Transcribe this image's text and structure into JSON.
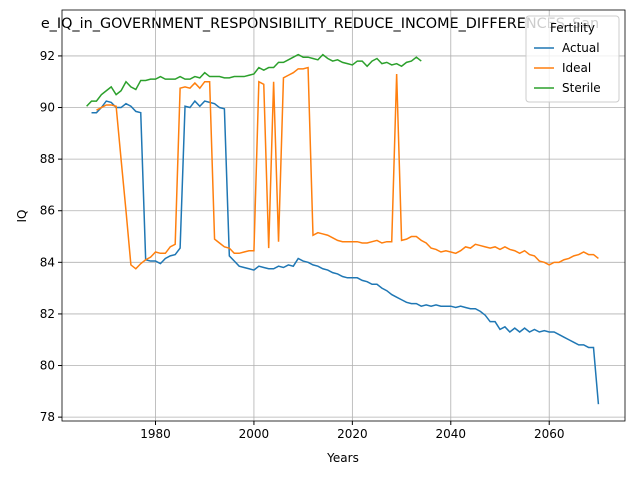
{
  "chart_data": {
    "type": "line",
    "title": "e_IQ_in_GOVERNMENT_RESPONSIBILITY_REDUCE_INCOME_DIFFERENCES_San",
    "x_label": "Years",
    "y_label": "IQ",
    "xlim": [
      1961,
      2075.4
    ],
    "ylim": [
      77.85,
      93.78
    ],
    "xticks": [
      1980,
      2000,
      2020,
      2040,
      2060
    ],
    "yticks": [
      78,
      80,
      82,
      84,
      86,
      88,
      90,
      92
    ],
    "grid": true,
    "legend_title": "Fertility",
    "legend_position": "upper right",
    "series": [
      {
        "name": "Actual",
        "color": "#1f77b4",
        "x": [
          1967,
          1968,
          1969,
          1970,
          1971,
          1972,
          1973,
          1974,
          1975,
          1976,
          1977,
          1978,
          1979,
          1980,
          1981,
          1982,
          1983,
          1984,
          1985,
          1986,
          1987,
          1988,
          1989,
          1990,
          1991,
          1992,
          1993,
          1994,
          1995,
          1996,
          1997,
          1998,
          1999,
          2000,
          2001,
          2002,
          2003,
          2004,
          2005,
          2006,
          2007,
          2008,
          2009,
          2010,
          2011,
          2012,
          2013,
          2014,
          2015,
          2016,
          2017,
          2018,
          2019,
          2020,
          2021,
          2022,
          2023,
          2024,
          2025,
          2026,
          2027,
          2028,
          2029,
          2030,
          2031,
          2032,
          2033,
          2034,
          2035,
          2036,
          2037,
          2038,
          2039,
          2040,
          2041,
          2042,
          2043,
          2044,
          2045,
          2046,
          2047,
          2048,
          2049,
          2050,
          2051,
          2052,
          2053,
          2054,
          2055,
          2056,
          2057,
          2058,
          2059,
          2060,
          2061,
          2062,
          2063,
          2064,
          2065,
          2066,
          2067,
          2068,
          2069,
          2070
        ],
        "values": [
          89.8,
          89.8,
          90.0,
          90.25,
          90.2,
          90.0,
          90.0,
          90.15,
          90.05,
          89.85,
          89.8,
          84.1,
          84.05,
          84.05,
          83.95,
          84.15,
          84.25,
          84.3,
          84.55,
          90.05,
          90.0,
          90.25,
          90.05,
          90.25,
          90.2,
          90.15,
          90.0,
          89.95,
          84.25,
          84.05,
          83.85,
          83.8,
          83.75,
          83.7,
          83.85,
          83.8,
          83.75,
          83.75,
          83.85,
          83.8,
          83.9,
          83.85,
          84.15,
          84.05,
          84.0,
          83.9,
          83.85,
          83.75,
          83.7,
          83.6,
          83.55,
          83.45,
          83.4,
          83.4,
          83.4,
          83.3,
          83.25,
          83.15,
          83.15,
          83.0,
          82.9,
          82.75,
          82.65,
          82.55,
          82.45,
          82.4,
          82.4,
          82.3,
          82.35,
          82.3,
          82.35,
          82.3,
          82.3,
          82.3,
          82.25,
          82.3,
          82.25,
          82.2,
          82.2,
          82.1,
          81.95,
          81.7,
          81.7,
          81.4,
          81.5,
          81.3,
          81.45,
          81.3,
          81.45,
          81.3,
          81.4,
          81.3,
          81.35,
          81.3,
          81.3,
          81.2,
          81.1,
          81.0,
          80.9,
          80.8,
          80.8,
          80.7,
          80.7,
          78.5
        ]
      },
      {
        "name": "Ideal",
        "color": "#ff7f0e",
        "x": [
          1968,
          1969,
          1970,
          1971,
          1972,
          1973,
          1974,
          1975,
          1976,
          1977,
          1978,
          1979,
          1980,
          1981,
          1982,
          1983,
          1984,
          1985,
          1986,
          1987,
          1988,
          1989,
          1990,
          1991,
          1992,
          1993,
          1994,
          1995,
          1996,
          1997,
          1998,
          1999,
          2000,
          2001,
          2002,
          2003,
          2004,
          2005,
          2006,
          2007,
          2008,
          2009,
          2010,
          2011,
          2012,
          2013,
          2014,
          2015,
          2016,
          2017,
          2018,
          2019,
          2020,
          2021,
          2022,
          2023,
          2024,
          2025,
          2026,
          2027,
          2028,
          2029,
          2030,
          2031,
          2032,
          2033,
          2034,
          2035,
          2036,
          2037,
          2038,
          2039,
          2040,
          2041,
          2042,
          2043,
          2044,
          2045,
          2046,
          2047,
          2048,
          2049,
          2050,
          2051,
          2052,
          2053,
          2054,
          2055,
          2056,
          2057,
          2058,
          2059,
          2060,
          2061,
          2062,
          2063,
          2064,
          2065,
          2066,
          2067,
          2068,
          2069,
          2070
        ],
        "values": [
          89.9,
          90.0,
          90.1,
          90.1,
          90.05,
          88.0,
          86.0,
          83.9,
          83.75,
          83.95,
          84.1,
          84.2,
          84.4,
          84.35,
          84.35,
          84.6,
          84.7,
          90.75,
          90.8,
          90.75,
          90.95,
          90.75,
          91.0,
          91.0,
          84.9,
          84.75,
          84.6,
          84.55,
          84.35,
          84.35,
          84.4,
          84.45,
          84.45,
          91.0,
          90.9,
          84.55,
          91.0,
          84.8,
          91.15,
          91.25,
          91.35,
          91.5,
          91.5,
          91.55,
          85.05,
          85.15,
          85.1,
          85.05,
          84.95,
          84.85,
          84.8,
          84.8,
          84.8,
          84.8,
          84.75,
          84.75,
          84.8,
          84.85,
          84.75,
          84.8,
          84.8,
          91.3,
          84.85,
          84.9,
          85.0,
          85.0,
          84.85,
          84.75,
          84.55,
          84.5,
          84.4,
          84.45,
          84.4,
          84.35,
          84.45,
          84.6,
          84.55,
          84.7,
          84.65,
          84.6,
          84.55,
          84.6,
          84.5,
          84.6,
          84.5,
          84.45,
          84.35,
          84.45,
          84.3,
          84.25,
          84.05,
          84.0,
          83.9,
          84.0,
          84.0,
          84.1,
          84.15,
          84.25,
          84.3,
          84.4,
          84.3,
          84.3,
          84.15
        ]
      },
      {
        "name": "Sterile",
        "color": "#2ca02c",
        "x": [
          1966,
          1967,
          1968,
          1969,
          1970,
          1971,
          1972,
          1973,
          1974,
          1975,
          1976,
          1977,
          1978,
          1979,
          1980,
          1981,
          1982,
          1983,
          1984,
          1985,
          1986,
          1987,
          1988,
          1989,
          1990,
          1991,
          1992,
          1993,
          1994,
          1995,
          1996,
          1997,
          1998,
          1999,
          2000,
          2001,
          2002,
          2003,
          2004,
          2005,
          2006,
          2007,
          2008,
          2009,
          2010,
          2011,
          2012,
          2013,
          2014,
          2015,
          2016,
          2017,
          2018,
          2019,
          2020,
          2021,
          2022,
          2023,
          2024,
          2025,
          2026,
          2027,
          2028,
          2029,
          2030,
          2031,
          2032,
          2033,
          2034
        ],
        "values": [
          90.05,
          90.25,
          90.25,
          90.5,
          90.65,
          90.8,
          90.5,
          90.65,
          91.0,
          90.8,
          90.7,
          91.05,
          91.05,
          91.1,
          91.1,
          91.2,
          91.1,
          91.1,
          91.1,
          91.2,
          91.1,
          91.1,
          91.2,
          91.15,
          91.35,
          91.2,
          91.2,
          91.2,
          91.15,
          91.15,
          91.2,
          91.2,
          91.2,
          91.25,
          91.3,
          91.55,
          91.45,
          91.55,
          91.55,
          91.75,
          91.75,
          91.85,
          91.95,
          92.05,
          91.95,
          91.95,
          91.9,
          91.85,
          92.05,
          91.9,
          91.8,
          91.85,
          91.75,
          91.7,
          91.65,
          91.8,
          91.8,
          91.6,
          91.8,
          91.9,
          91.7,
          91.75,
          91.65,
          91.7,
          91.6,
          91.75,
          91.8,
          91.95,
          91.8
        ]
      }
    ]
  }
}
